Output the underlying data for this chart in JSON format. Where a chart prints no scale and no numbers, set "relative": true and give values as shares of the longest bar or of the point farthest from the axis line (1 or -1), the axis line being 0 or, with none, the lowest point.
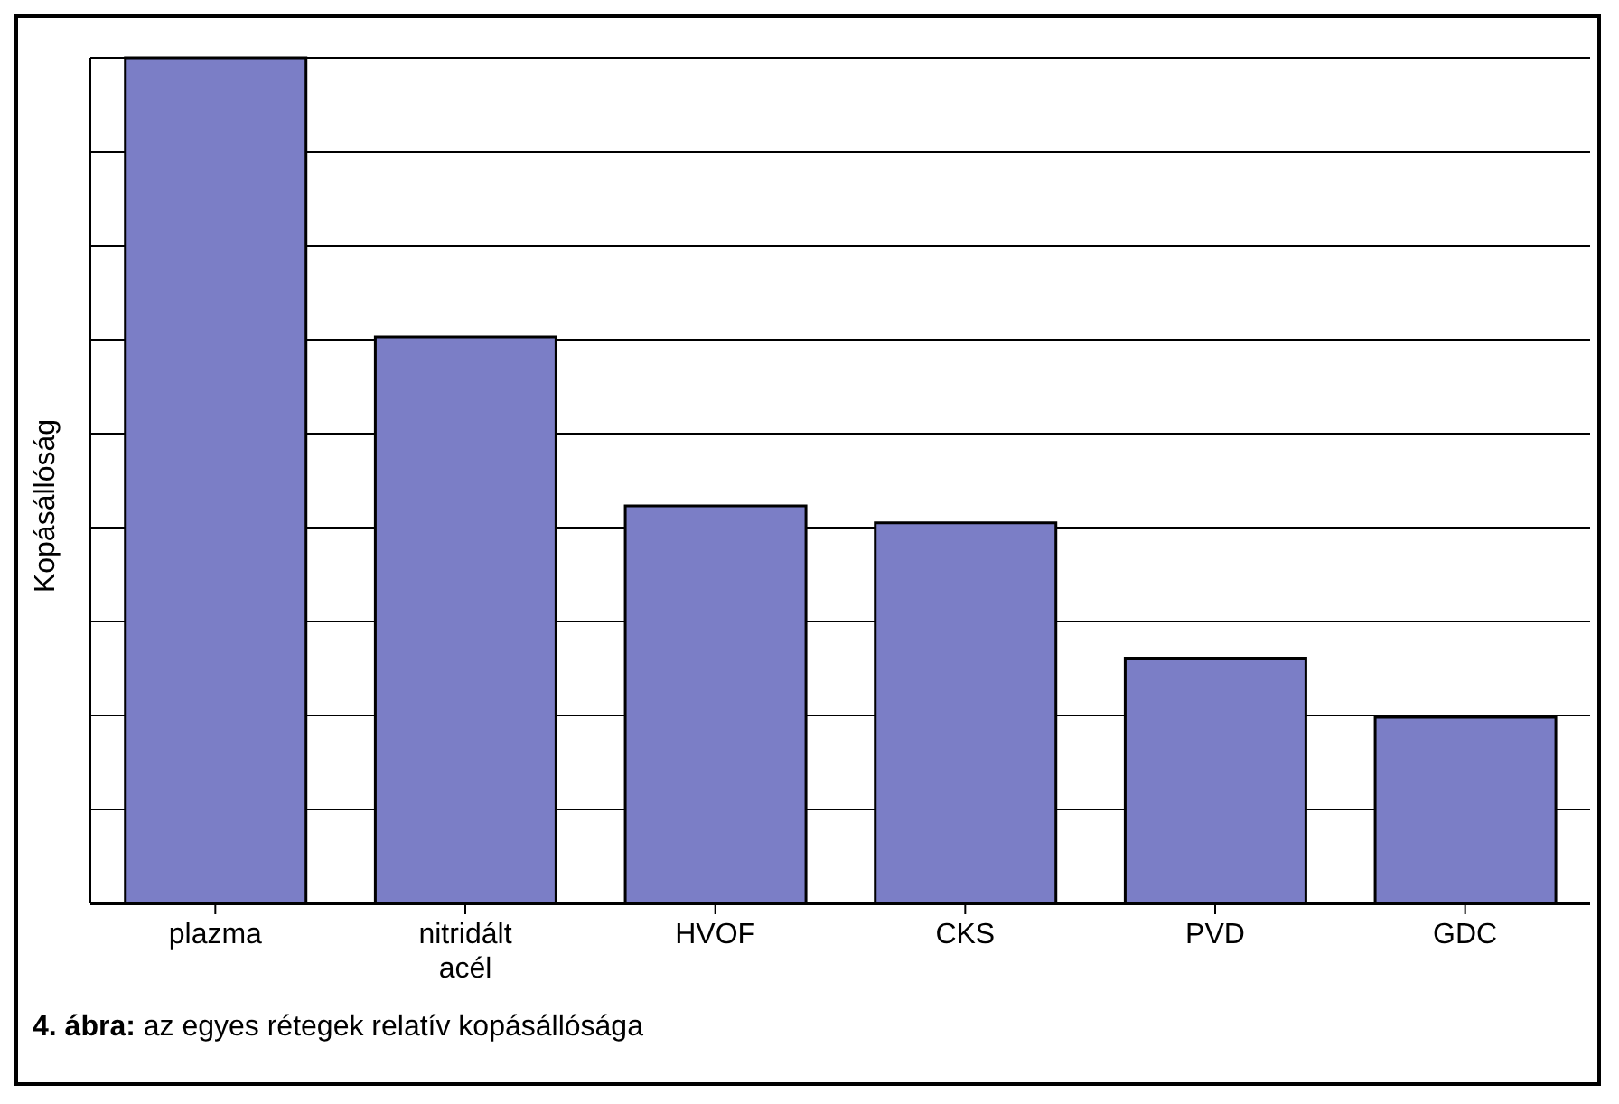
{
  "chart_data": {
    "type": "bar",
    "relative": true,
    "ylabel": "Kopásállóság",
    "categories": [
      "plazma",
      "nitridált acél",
      "HVOF",
      "CKS",
      "PVD",
      "GDC"
    ],
    "values": [
      1,
      0.67,
      0.47,
      0.45,
      0.29,
      0.22
    ],
    "color": "#7b7ec6",
    "grid": "y",
    "annotations": [
      "4. ábra: az egyes rétegek relatív kopásállósága"
    ]
  }
}
